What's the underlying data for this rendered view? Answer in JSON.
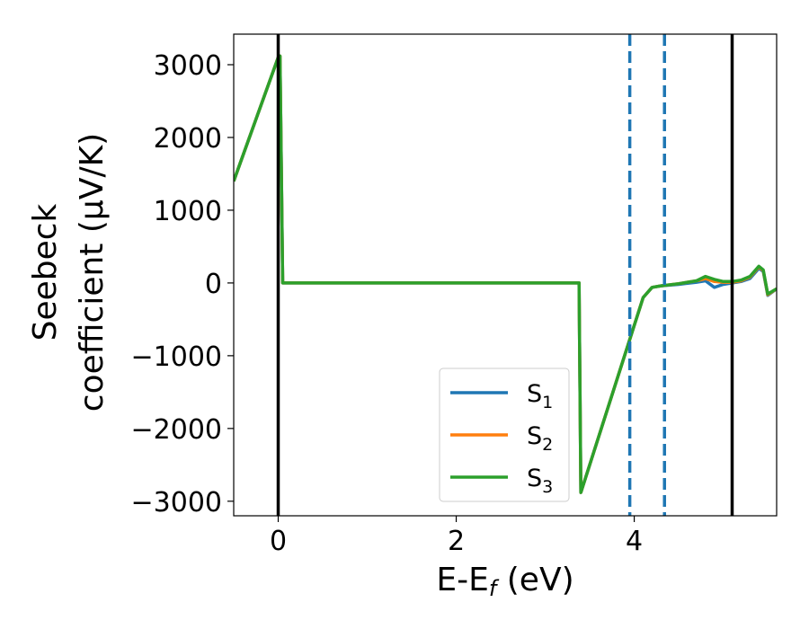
{
  "chart_data": {
    "type": "line",
    "xlabel": "E-E",
    "xlabel_sub": "f",
    "xlabel_unit": " (eV)",
    "ylabel_line1": "Seebeck",
    "ylabel_line2": "coefficient  (μV/K)",
    "xlim": [
      -0.5,
      5.6
    ],
    "ylim": [
      -3200,
      3420
    ],
    "xticks": [
      0,
      2,
      4
    ],
    "xtick_labels": [
      "0",
      "2",
      "4"
    ],
    "yticks": [
      -3000,
      -2000,
      -1000,
      0,
      1000,
      2000,
      3000
    ],
    "ytick_labels": [
      "−3000",
      "−2000",
      "−1000",
      "0",
      "1000",
      "2000",
      "3000"
    ],
    "grid": false,
    "legend_position": "lower-right",
    "vlines_solid": [
      0,
      5.1
    ],
    "vlines_dashed": [
      3.95,
      4.34
    ],
    "vline_solid_color": "#000000",
    "vline_dashed_color": "#1f77b4",
    "series": [
      {
        "name": "S",
        "sub": "1",
        "color": "#1f77b4",
        "x": [
          -0.5,
          0.0,
          0.02,
          0.05,
          3.38,
          3.4,
          4.1,
          4.2,
          4.3,
          4.5,
          4.7,
          4.8,
          4.9,
          5.0,
          5.1,
          5.2,
          5.3,
          5.4,
          5.45,
          5.5,
          5.6
        ],
        "y": [
          1400,
          3100,
          3120,
          0,
          0,
          -2880,
          -200,
          -60,
          -40,
          -20,
          10,
          30,
          -60,
          -20,
          0,
          20,
          60,
          200,
          160,
          -170,
          -80
        ]
      },
      {
        "name": "S",
        "sub": "2",
        "color": "#ff7f0e",
        "x": [
          -0.5,
          0.0,
          0.02,
          0.05,
          3.38,
          3.4,
          4.1,
          4.2,
          4.3,
          4.5,
          4.7,
          4.8,
          4.9,
          5.0,
          5.1,
          5.2,
          5.3,
          5.4,
          5.45,
          5.5,
          5.6
        ],
        "y": [
          1400,
          3100,
          3120,
          0,
          0,
          -2880,
          -200,
          -60,
          -40,
          -10,
          30,
          60,
          20,
          10,
          10,
          30,
          80,
          220,
          170,
          -160,
          -80
        ]
      },
      {
        "name": "S",
        "sub": "3",
        "color": "#2ca02c",
        "x": [
          -0.5,
          0.0,
          0.02,
          0.05,
          3.38,
          3.4,
          4.1,
          4.2,
          4.3,
          4.5,
          4.7,
          4.8,
          4.9,
          5.0,
          5.1,
          5.2,
          5.3,
          5.4,
          5.45,
          5.5,
          5.6
        ],
        "y": [
          1400,
          3100,
          3120,
          0,
          0,
          -2880,
          -200,
          -60,
          -40,
          -10,
          30,
          90,
          50,
          20,
          20,
          40,
          90,
          230,
          180,
          -150,
          -80
        ]
      }
    ]
  }
}
